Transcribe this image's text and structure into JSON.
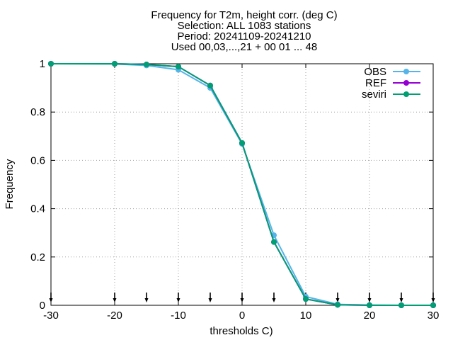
{
  "chart_data": {
    "type": "line",
    "title_lines": [
      "Frequency  for T2m, height corr. (deg C)",
      "Selection: ALL    1083 stations",
      "Period: 20241109-20241210",
      "Used 00,03,...,21 + 00 01 ... 48"
    ],
    "xlabel": "thresholds C)",
    "ylabel": "Frequency",
    "xlim": [
      -30,
      30
    ],
    "ylim": [
      0,
      1
    ],
    "xticks": [
      -30,
      -20,
      -10,
      0,
      10,
      20,
      30
    ],
    "yticks": [
      0,
      0.2,
      0.4,
      0.6,
      0.8,
      1
    ],
    "ytick_labels": [
      "0",
      "0.2",
      "0.4",
      "0.6",
      "0.8",
      "1"
    ],
    "grid": true,
    "legend_position": "top-right",
    "markers_x": [
      -30,
      -20,
      -15,
      -10,
      -5,
      0,
      5,
      10,
      15,
      20,
      25,
      30
    ],
    "x": [
      -30,
      -20,
      -15,
      -10,
      -5,
      0,
      5,
      10,
      15,
      20,
      25,
      30
    ],
    "series": [
      {
        "name": "OBS",
        "color": "#56b4e9",
        "values": [
          1.0,
          0.999,
          0.993,
          0.975,
          0.9,
          0.668,
          0.29,
          0.036,
          0.004,
          0.001,
          0.0,
          0.0
        ]
      },
      {
        "name": "REF",
        "color": "#9400d3",
        "values": [
          1.0,
          1.0,
          0.997,
          0.988,
          0.91,
          0.672,
          0.262,
          0.026,
          0.002,
          0.0,
          0.0,
          0.0
        ]
      },
      {
        "name": "seviri",
        "color": "#009e73",
        "values": [
          1.0,
          1.0,
          0.997,
          0.988,
          0.91,
          0.672,
          0.262,
          0.026,
          0.002,
          0.0,
          0.0,
          0.0
        ]
      }
    ]
  }
}
